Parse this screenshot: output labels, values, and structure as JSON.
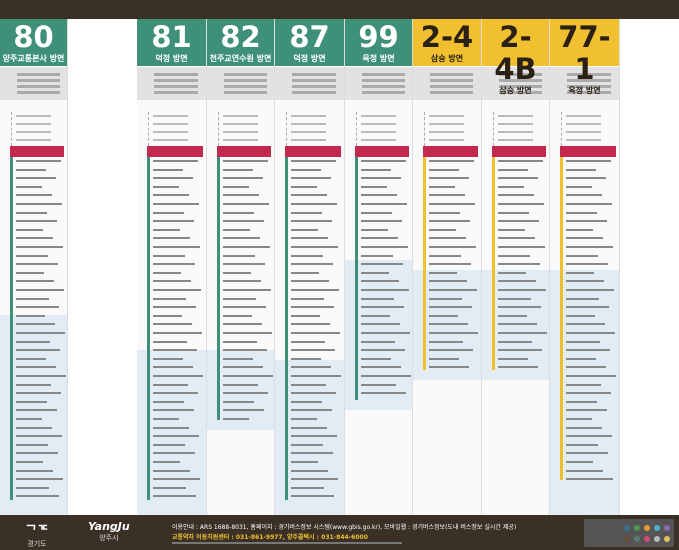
{
  "routes": [
    {
      "number": "80",
      "direction": "양주교통본사 방면",
      "color": "#3f9079"
    },
    {
      "number": "81",
      "direction": "덕정 방면",
      "color": "#3f9079"
    },
    {
      "number": "82",
      "direction": "천주교연수원 방면",
      "color": "#3f9079"
    },
    {
      "number": "87",
      "direction": "덕정 방면",
      "color": "#3f9079"
    },
    {
      "number": "99",
      "direction": "옥정 방면",
      "color": "#3f9079"
    },
    {
      "number": "2-4",
      "direction": "삼숭 방면",
      "color": "#f0c030"
    },
    {
      "number": "2-4B",
      "direction": "삼숭 방면",
      "color": "#f0c030"
    },
    {
      "number": "77-1",
      "direction": "옥정 방면",
      "color": "#f0c030"
    }
  ],
  "footer": {
    "logo1": "경기도",
    "logo2_en": "YangJu",
    "logo2": "양주시",
    "line1": "이용안내 : ARS 1688-8031, 홈페이지 : 경기버스정보 시스템(www.gbis.go.kr), 모바일웹 : 경기버스정보(도내 버스정보 실시간 제공)",
    "line2": "교통약자 이동지원센터 : 031-861-9977, 양주콜택시 : 031-844-6000"
  }
}
